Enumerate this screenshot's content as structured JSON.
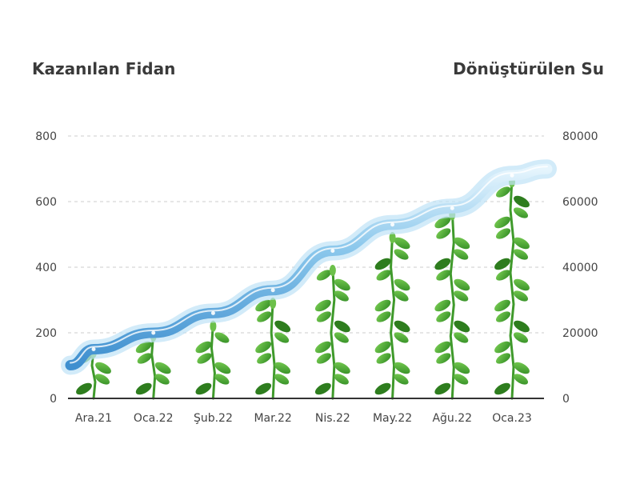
{
  "chart_data": {
    "type": "bar",
    "left_axis_title": "Kazanılan Fidan",
    "right_axis_title": "Dönüştürülen Su",
    "categories": [
      "Ara.21",
      "Oca.22",
      "Şub.22",
      "Mar.22",
      "Nis.22",
      "May.22",
      "Ağu.22",
      "Oca.23"
    ],
    "y_left": {
      "ticks": [
        "0",
        "200",
        "400",
        "600",
        "800"
      ],
      "lim": [
        0,
        800
      ]
    },
    "y_right": {
      "ticks": [
        "0",
        "20000",
        "40000",
        "60000",
        "80000"
      ],
      "lim": [
        0,
        80000
      ]
    },
    "grid": true,
    "series": [
      {
        "axis": "left",
        "marks": "plants",
        "values": [
          150,
          200,
          230,
          300,
          400,
          500,
          570,
          670
        ]
      },
      {
        "axis": "right",
        "marks": "water-line",
        "values": [
          15000,
          20000,
          26000,
          33000,
          45000,
          53000,
          58000,
          68000
        ]
      }
    ]
  },
  "colors": {
    "stem": "#3f9a2b",
    "leaf_dark": "#2e7d1e",
    "leaf_light": "#6cc04a",
    "water": "#5fa8dc",
    "water_light": "#bfe3f7",
    "grid": "#cccccc",
    "axis": "#333333"
  }
}
